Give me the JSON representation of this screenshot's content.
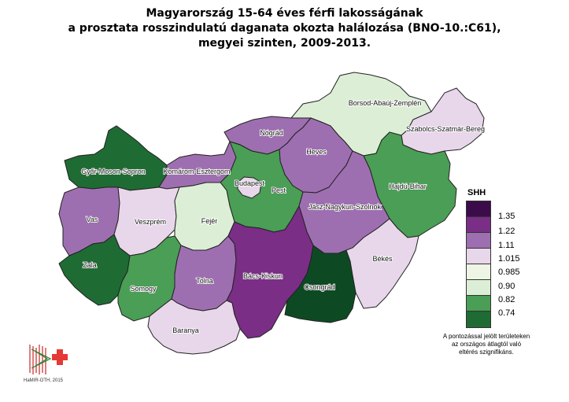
{
  "title": {
    "line1": "Magyarország 15-64 éves férfi lakosságának",
    "line2": "a prosztata rosszindulatú daganata okozta halálozása (BNO-10.:C61),",
    "line3": "megyei szinten, 2009-2013."
  },
  "legend": {
    "title": "SHH",
    "classes": [
      {
        "color": "#3c0b49",
        "label": "1.35"
      },
      {
        "color": "#7a2e86",
        "label": "1.22"
      },
      {
        "color": "#9e6fb0",
        "label": "1.11"
      },
      {
        "color": "#e8d6ea",
        "label": "1.015"
      },
      {
        "color": "#eef5e5",
        "label": "0.985"
      },
      {
        "color": "#dcefd6",
        "label": "0.90"
      },
      {
        "color": "#4a9e55",
        "label": "0.82"
      },
      {
        "color": "#1f6b34",
        "label": "0.74"
      }
    ]
  },
  "note": {
    "line1": "A pontozással jelölt területeken",
    "line2": "az országos átlagtól való",
    "line3": "eltérés szignifikáns."
  },
  "logo": {
    "icon": "hamir-oth-logo",
    "caption": "HaMIR-OTH, 2015"
  },
  "counties": [
    {
      "name": "Borsod-Abaúj-Zemplén",
      "color": "#dcefd6"
    },
    {
      "name": "Szabolcs-Szatmár-Bereg",
      "color": "#e8d6ea"
    },
    {
      "name": "Nógrád",
      "color": "#9e6fb0"
    },
    {
      "name": "Heves",
      "color": "#9e6fb0"
    },
    {
      "name": "Győr-Moson-Sopron",
      "color": "#1f6b34"
    },
    {
      "name": "Komárom-Esztergom",
      "color": "#9e6fb0"
    },
    {
      "name": "Budapest",
      "color": "#4a9e55"
    },
    {
      "name": "Pest",
      "color": "#e8d6ea"
    },
    {
      "name": "Hajdú-Bihar",
      "color": "#4a9e55"
    },
    {
      "name": "Vas",
      "color": "#9e6fb0"
    },
    {
      "name": "Veszprém",
      "color": "#e8d6ea"
    },
    {
      "name": "Fejér",
      "color": "#dcefd6"
    },
    {
      "name": "Jász-Nagykun-Szolnok",
      "color": "#9e6fb0"
    },
    {
      "name": "Zala",
      "color": "#1f6b34"
    },
    {
      "name": "Somogy",
      "color": "#4a9e55"
    },
    {
      "name": "Tolna",
      "color": "#9e6fb0"
    },
    {
      "name": "Bács-Kiskun",
      "color": "#7a2e86"
    },
    {
      "name": "Csongrád",
      "color": "#0d4a24"
    },
    {
      "name": "Békés",
      "color": "#e8d6ea"
    },
    {
      "name": "Baranya",
      "color": "#e8d6ea"
    }
  ]
}
